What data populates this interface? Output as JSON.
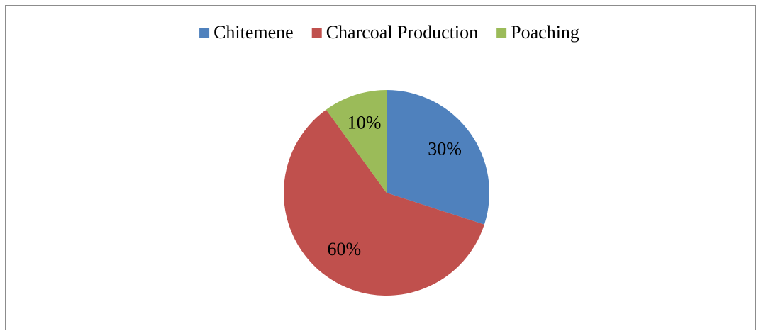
{
  "chart_data": {
    "type": "pie",
    "categories": [
      "Chitemene",
      "Charcoal Production",
      "Poaching"
    ],
    "values": [
      30,
      60,
      10
    ],
    "value_labels": [
      "30%",
      "60%",
      "10%"
    ],
    "colors": [
      "#4f81bd",
      "#c0504d",
      "#9bbb59"
    ],
    "legend": "top"
  }
}
